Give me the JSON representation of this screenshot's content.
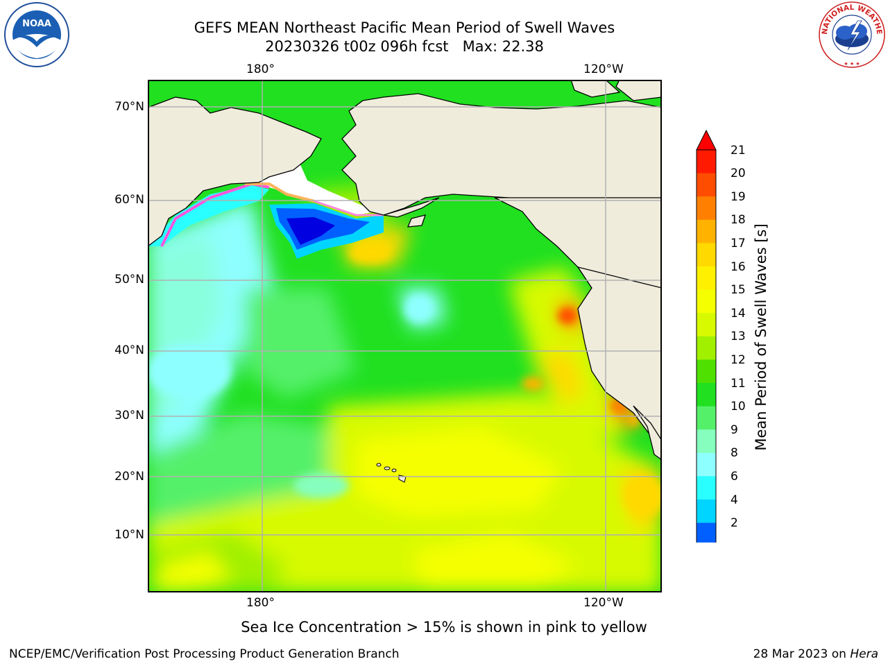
{
  "title": {
    "line1": "GEFS MEAN Northeast Pacific Mean Period of Swell Waves",
    "line2": "20230326 t00z 096h fcst   Max: 22.38"
  },
  "map": {
    "lon_labels_top": [
      "180°",
      "120°W"
    ],
    "lon_labels_bottom": [
      "180°",
      "120°W"
    ],
    "lat_labels": [
      "70°N",
      "60°N",
      "50°N",
      "40°N",
      "30°N",
      "20°N",
      "10°N"
    ],
    "grid": true,
    "land_color": "#efecdc"
  },
  "colorbar": {
    "title": "Mean Period of Swell Waves [s]",
    "ticks": [
      "21",
      "20",
      "19",
      "18",
      "17",
      "16",
      "15",
      "14",
      "13",
      "12",
      "11",
      "10",
      "9",
      "8",
      "6",
      "4",
      "2"
    ],
    "colors": [
      "#ff1a00",
      "#ff4d00",
      "#ff8000",
      "#ffb300",
      "#ffd900",
      "#fff000",
      "#f5ff00",
      "#d7fa00",
      "#a0f000",
      "#50e000",
      "#20e020",
      "#55f06a",
      "#86ffbe",
      "#8effff",
      "#2affff",
      "#00d5ff",
      "#0060ff"
    ],
    "extend_max_color": "#ff0000",
    "extend_min_color": "#0000ff"
  },
  "note": "Sea Ice Concentration > 15% is shown in pink to yellow",
  "footer": {
    "left": "NCEP/EMC/Verification Post Processing Product Generation Branch",
    "right_date": "28 Mar 2023 on ",
    "right_host": "Hera"
  },
  "logos": {
    "noaa": "NOAA",
    "nws": "NATIONAL WEATHER SERVICE"
  }
}
